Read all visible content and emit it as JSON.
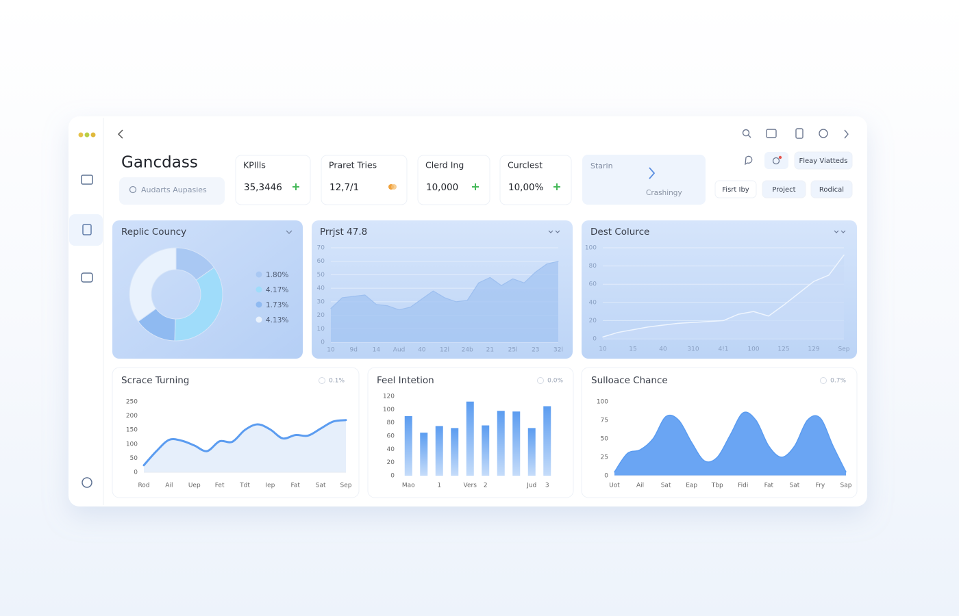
{
  "header": {
    "title": "Gancdass",
    "search_placeholder": "Audarts Aupasies"
  },
  "kpis": [
    {
      "label": "KPIlls",
      "value": "35,3446"
    },
    {
      "label": "Praret Tries",
      "value": "12,7/1"
    },
    {
      "label": "Clerd Ing",
      "value": "10,000"
    },
    {
      "label": "Curclest",
      "value": "10,00%"
    }
  ],
  "status_card": {
    "title": "Starin",
    "subtitle": "Crashingy"
  },
  "buttons": [
    "Fleay Viatteds",
    "Fisrt Iby",
    "Project",
    "Rodical"
  ],
  "chart_data": [
    {
      "type": "pie",
      "title": "Replic Councy",
      "donut": true,
      "values": [
        1.8,
        4.17,
        1.73,
        4.13
      ],
      "value_labels": [
        "1.80%",
        "4.17%",
        "1.73%",
        "4.13%"
      ],
      "colors": [
        "#a9c8f3",
        "#9fdcfa",
        "#8fbaf1",
        "#e9f2fd"
      ]
    },
    {
      "type": "area",
      "title": "Prrjst 47.8",
      "categories": [
        "10",
        null,
        "9d",
        null,
        "14",
        null,
        "Aud",
        null,
        "40",
        null,
        "12l",
        null,
        "24b",
        null,
        "21",
        null,
        "25l",
        null,
        "23",
        null,
        "32l"
      ],
      "values": [
        25,
        33,
        34,
        35,
        28,
        27,
        24,
        26,
        32,
        38,
        33,
        30,
        31,
        44,
        48,
        42,
        47,
        44,
        52,
        58,
        60
      ],
      "color": "#9dbfef",
      "fill": "#a3c4f2",
      "ylim": [
        0,
        70
      ],
      "yticks": [
        0,
        10,
        20,
        30,
        40,
        50,
        60,
        70
      ],
      "grid": true
    },
    {
      "type": "area",
      "title": "Dest Colurce",
      "categories": [
        "10",
        null,
        "15",
        null,
        "40",
        null,
        "310",
        null,
        "4!1",
        null,
        "100",
        null,
        "125",
        null,
        "129",
        null,
        "Sep"
      ],
      "values": [
        2,
        7,
        10,
        13,
        15,
        17,
        18,
        19,
        20,
        27,
        30,
        25,
        37,
        50,
        63,
        70,
        92
      ],
      "color": "#eef5fe",
      "fill": "#c9dcf8",
      "ylim": [
        0,
        100
      ],
      "yticks": [
        0,
        20,
        40,
        60,
        80,
        100
      ],
      "grid": true
    },
    {
      "type": "area",
      "title": "Scrace Turning",
      "badge": "0.1%",
      "smooth": true,
      "categories": [
        "Rod",
        null,
        "Ail",
        null,
        "Uep",
        null,
        "Fet",
        null,
        "Tdt",
        null,
        "Iep",
        null,
        "Fat",
        null,
        "Sat",
        null,
        "Sep"
      ],
      "values": [
        25,
        75,
        115,
        112,
        95,
        75,
        110,
        108,
        150,
        170,
        152,
        120,
        132,
        130,
        155,
        180,
        185
      ],
      "color": "#5b9cf0",
      "fill": "#e3edfb",
      "ylim": [
        0,
        250
      ],
      "yticks": [
        0,
        50,
        100,
        150,
        200,
        250
      ],
      "grid": false
    },
    {
      "type": "bar",
      "title": "Feel Intetion",
      "badge": "0.0%",
      "categories": [
        "Mao",
        null,
        "1",
        null,
        "Vers",
        "2",
        null,
        null,
        "Jud",
        "3"
      ],
      "values": [
        90,
        65,
        75,
        72,
        112,
        76,
        98,
        97,
        72,
        105
      ],
      "color": "#5b9cf0",
      "ylim": [
        0,
        120
      ],
      "yticks": [
        0,
        20,
        40,
        60,
        80,
        100,
        120
      ],
      "grid": false
    },
    {
      "type": "area",
      "title": "Sulloace Chance",
      "badge": "0.7%",
      "smooth": true,
      "categories": [
        "Uot",
        null,
        "Ail",
        null,
        "Sat",
        null,
        "Eap",
        null,
        "Tbp",
        null,
        "Fidi",
        null,
        "Fat",
        null,
        "Sat",
        null,
        "Fry",
        null,
        "Sap"
      ],
      "values": [
        5,
        30,
        35,
        50,
        80,
        75,
        45,
        20,
        25,
        55,
        85,
        75,
        40,
        25,
        40,
        75,
        78,
        40,
        5
      ],
      "color": "#5b9cf0",
      "fill": "#62a0f2",
      "ylim": [
        0,
        100
      ],
      "yticks": [
        0,
        25,
        50,
        75,
        100
      ],
      "grid": false
    }
  ]
}
